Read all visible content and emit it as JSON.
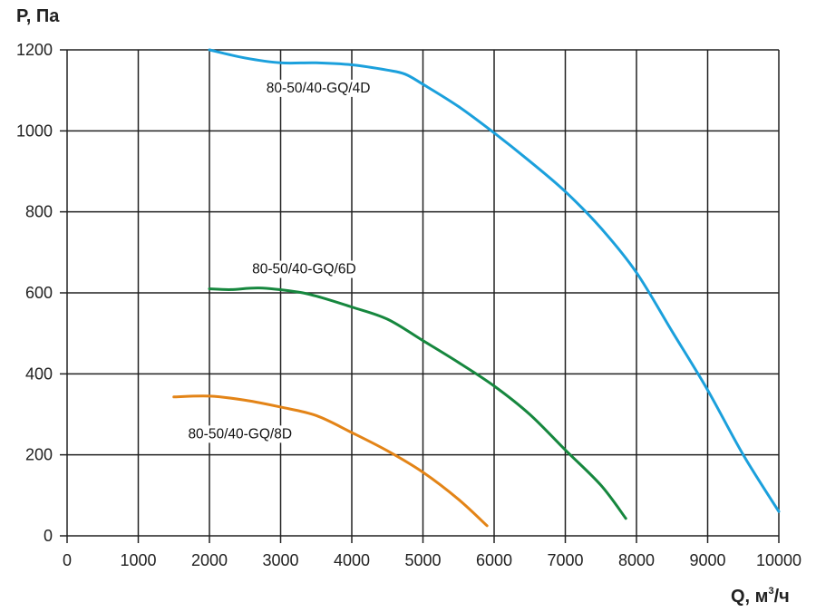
{
  "chart_data": {
    "type": "line",
    "title": "",
    "xlabel": "Q, м³/ч",
    "xlabel_main": "Q, м",
    "xlabel_sup": "3",
    "xlabel_tail": "/ч",
    "ylabel": "P, Па",
    "xlim": [
      0,
      10000
    ],
    "ylim": [
      0,
      1200
    ],
    "xticks": [
      0,
      1000,
      2000,
      3000,
      4000,
      5000,
      6000,
      7000,
      8000,
      9000,
      10000
    ],
    "yticks": [
      0,
      200,
      400,
      600,
      800,
      1000,
      1200
    ],
    "grid": true,
    "legend": "inline labels",
    "series": [
      {
        "name": "80-50/40-GQ/4D",
        "color": "#1ba0dc",
        "label_at": [
          2800,
          1095
        ],
        "x": [
          2000,
          2500,
          3000,
          3500,
          4000,
          4500,
          4750,
          5000,
          5500,
          6000,
          6500,
          7000,
          7500,
          8000,
          8500,
          9000,
          9500,
          10000
        ],
        "y": [
          1200,
          1180,
          1168,
          1168,
          1163,
          1150,
          1140,
          1115,
          1060,
          995,
          925,
          850,
          760,
          650,
          505,
          360,
          200,
          60
        ]
      },
      {
        "name": "80-50/40-GQ/6D",
        "color": "#16873e",
        "label_at": [
          2600,
          648
        ],
        "x": [
          2000,
          2300,
          2700,
          3200,
          3500,
          4000,
          4500,
          5000,
          5500,
          6000,
          6500,
          7000,
          7500,
          7850
        ],
        "y": [
          610,
          608,
          612,
          603,
          592,
          565,
          535,
          482,
          428,
          370,
          300,
          212,
          125,
          43
        ]
      },
      {
        "name": "80-50/40-GQ/8D",
        "color": "#e38417",
        "label_at": [
          1700,
          241
        ],
        "x": [
          1500,
          2000,
          2500,
          3000,
          3500,
          4000,
          4500,
          5000,
          5500,
          5900
        ],
        "y": [
          343,
          345,
          335,
          318,
          297,
          255,
          210,
          157,
          90,
          25
        ]
      }
    ]
  }
}
